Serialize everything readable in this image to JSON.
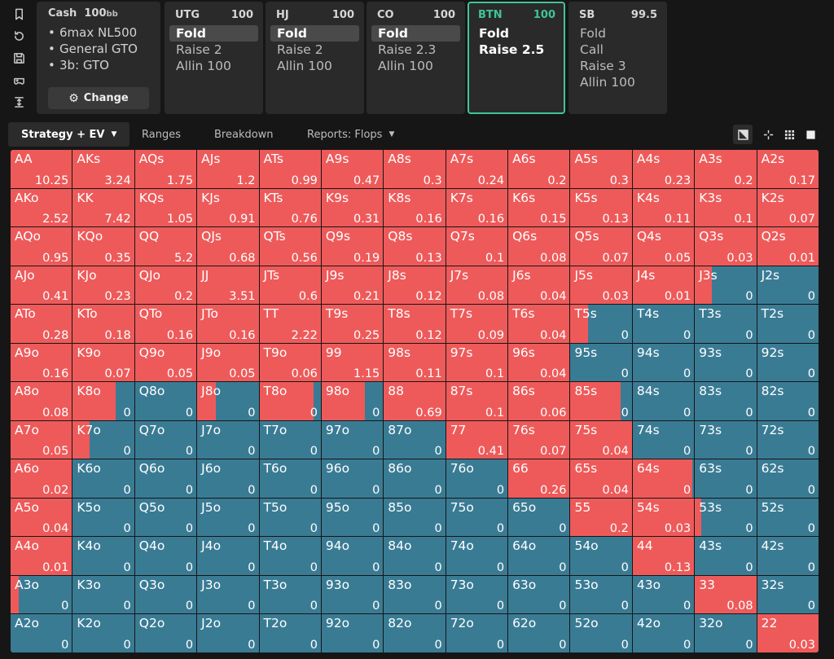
{
  "rail": {
    "icons": [
      "bookmark-icon",
      "refresh-icon",
      "save-icon",
      "gamepad-icon",
      "fit-height-icon"
    ]
  },
  "info": {
    "title": "Cash",
    "stack": "100",
    "stack_unit": "bb",
    "lines": [
      "6max NL500",
      "General GTO",
      "3b: GTO"
    ],
    "change_label": "Change"
  },
  "positions": [
    {
      "name": "UTG",
      "stack": "100",
      "actions": [
        {
          "label": "Fold",
          "selected": true
        },
        {
          "label": "Raise 2"
        },
        {
          "label": "Allin 100"
        }
      ]
    },
    {
      "name": "HJ",
      "stack": "100",
      "actions": [
        {
          "label": "Fold",
          "selected": true
        },
        {
          "label": "Raise 2"
        },
        {
          "label": "Allin 100"
        }
      ]
    },
    {
      "name": "CO",
      "stack": "100",
      "actions": [
        {
          "label": "Fold",
          "selected": true
        },
        {
          "label": "Raise 2.3"
        },
        {
          "label": "Allin 100"
        }
      ]
    },
    {
      "name": "BTN",
      "stack": "100",
      "active": true,
      "actions": [
        {
          "label": "Fold"
        },
        {
          "label": "Raise 2.5"
        }
      ]
    },
    {
      "name": "SB",
      "stack": "99.5",
      "actions": [
        {
          "label": "Fold"
        },
        {
          "label": "Call"
        },
        {
          "label": "Raise 3"
        },
        {
          "label": "Allin 100"
        }
      ]
    }
  ],
  "tabs": [
    {
      "label": "Strategy + EV",
      "active": true,
      "dropdown": true
    },
    {
      "label": "Ranges"
    },
    {
      "label": "Breakdown"
    },
    {
      "label": "Reports: Flops",
      "dropdown": true
    }
  ],
  "view_buttons": [
    "contrast-icon",
    "expand-icon",
    "grid-icon",
    "square-icon"
  ],
  "colors": {
    "raise": "#ee5a5a",
    "fold": "#3a7b94",
    "accent": "#3fc49a"
  },
  "grid": [
    [
      [
        "AA",
        "10.25",
        1
      ],
      [
        "AKs",
        "3.24",
        1
      ],
      [
        "AQs",
        "1.75",
        1
      ],
      [
        "AJs",
        "1.2",
        1
      ],
      [
        "ATs",
        "0.99",
        1
      ],
      [
        "A9s",
        "0.47",
        1
      ],
      [
        "A8s",
        "0.3",
        1
      ],
      [
        "A7s",
        "0.24",
        1
      ],
      [
        "A6s",
        "0.2",
        1
      ],
      [
        "A5s",
        "0.3",
        1
      ],
      [
        "A4s",
        "0.23",
        1
      ],
      [
        "A3s",
        "0.2",
        1
      ],
      [
        "A2s",
        "0.17",
        1
      ]
    ],
    [
      [
        "AKo",
        "2.52",
        1
      ],
      [
        "KK",
        "7.42",
        1
      ],
      [
        "KQs",
        "1.05",
        1
      ],
      [
        "KJs",
        "0.91",
        1
      ],
      [
        "KTs",
        "0.76",
        1
      ],
      [
        "K9s",
        "0.31",
        1
      ],
      [
        "K8s",
        "0.16",
        1
      ],
      [
        "K7s",
        "0.16",
        1
      ],
      [
        "K6s",
        "0.15",
        1
      ],
      [
        "K5s",
        "0.13",
        1
      ],
      [
        "K4s",
        "0.11",
        1
      ],
      [
        "K3s",
        "0.1",
        1
      ],
      [
        "K2s",
        "0.07",
        1
      ]
    ],
    [
      [
        "AQo",
        "0.95",
        1
      ],
      [
        "KQo",
        "0.35",
        1
      ],
      [
        "QQ",
        "5.2",
        1
      ],
      [
        "QJs",
        "0.68",
        1
      ],
      [
        "QTs",
        "0.56",
        1
      ],
      [
        "Q9s",
        "0.19",
        1
      ],
      [
        "Q8s",
        "0.13",
        1
      ],
      [
        "Q7s",
        "0.1",
        1
      ],
      [
        "Q6s",
        "0.08",
        1
      ],
      [
        "Q5s",
        "0.07",
        1
      ],
      [
        "Q4s",
        "0.05",
        1
      ],
      [
        "Q3s",
        "0.03",
        1
      ],
      [
        "Q2s",
        "0.01",
        1
      ]
    ],
    [
      [
        "AJo",
        "0.41",
        1
      ],
      [
        "KJo",
        "0.23",
        1
      ],
      [
        "QJo",
        "0.2",
        1
      ],
      [
        "JJ",
        "3.51",
        1
      ],
      [
        "JTs",
        "0.6",
        1
      ],
      [
        "J9s",
        "0.21",
        1
      ],
      [
        "J8s",
        "0.12",
        1
      ],
      [
        "J7s",
        "0.08",
        1
      ],
      [
        "J6s",
        "0.04",
        1
      ],
      [
        "J5s",
        "0.03",
        1
      ],
      [
        "J4s",
        "0.01",
        1
      ],
      [
        "J3s",
        "0",
        0.28
      ],
      [
        "J2s",
        "0",
        0
      ]
    ],
    [
      [
        "ATo",
        "0.28",
        1
      ],
      [
        "KTo",
        "0.18",
        1
      ],
      [
        "QTo",
        "0.16",
        1
      ],
      [
        "JTo",
        "0.16",
        1
      ],
      [
        "TT",
        "2.22",
        1
      ],
      [
        "T9s",
        "0.25",
        1
      ],
      [
        "T8s",
        "0.12",
        1
      ],
      [
        "T7s",
        "0.09",
        1
      ],
      [
        "T6s",
        "0.04",
        1
      ],
      [
        "T5s",
        "0",
        0.28
      ],
      [
        "T4s",
        "0",
        0
      ],
      [
        "T3s",
        "0",
        0
      ],
      [
        "T2s",
        "0",
        0
      ]
    ],
    [
      [
        "A9o",
        "0.16",
        1
      ],
      [
        "K9o",
        "0.07",
        1
      ],
      [
        "Q9o",
        "0.05",
        1
      ],
      [
        "J9o",
        "0.05",
        1
      ],
      [
        "T9o",
        "0.06",
        1
      ],
      [
        "99",
        "1.15",
        1
      ],
      [
        "98s",
        "0.11",
        1
      ],
      [
        "97s",
        "0.1",
        1
      ],
      [
        "96s",
        "0.04",
        1
      ],
      [
        "95s",
        "0",
        0
      ],
      [
        "94s",
        "0",
        0
      ],
      [
        "93s",
        "0",
        0
      ],
      [
        "92s",
        "0",
        0
      ]
    ],
    [
      [
        "A8o",
        "0.08",
        1
      ],
      [
        "K8o",
        "0",
        0.7
      ],
      [
        "Q8o",
        "0",
        0
      ],
      [
        "J8o",
        "0",
        0.3
      ],
      [
        "T8o",
        "0",
        0.88
      ],
      [
        "98o",
        "0",
        0.71
      ],
      [
        "88",
        "0.69",
        1
      ],
      [
        "87s",
        "0.1",
        1
      ],
      [
        "86s",
        "0.06",
        1
      ],
      [
        "85s",
        "0",
        0.82
      ],
      [
        "84s",
        "0",
        0
      ],
      [
        "83s",
        "0",
        0
      ],
      [
        "82s",
        "0",
        0
      ]
    ],
    [
      [
        "A7o",
        "0.05",
        1
      ],
      [
        "K7o",
        "0",
        0.28
      ],
      [
        "Q7o",
        "0",
        0
      ],
      [
        "J7o",
        "0",
        0
      ],
      [
        "T7o",
        "0",
        0
      ],
      [
        "97o",
        "0",
        0
      ],
      [
        "87o",
        "0",
        0
      ],
      [
        "77",
        "0.41",
        1
      ],
      [
        "76s",
        "0.07",
        1
      ],
      [
        "75s",
        "0.04",
        1
      ],
      [
        "74s",
        "0",
        0
      ],
      [
        "73s",
        "0",
        0
      ],
      [
        "72s",
        "0",
        0
      ]
    ],
    [
      [
        "A6o",
        "0.02",
        1
      ],
      [
        "K6o",
        "0",
        0
      ],
      [
        "Q6o",
        "0",
        0
      ],
      [
        "J6o",
        "0",
        0
      ],
      [
        "T6o",
        "0",
        0
      ],
      [
        "96o",
        "0",
        0
      ],
      [
        "86o",
        "0",
        0
      ],
      [
        "76o",
        "0",
        0
      ],
      [
        "66",
        "0.26",
        1
      ],
      [
        "65s",
        "0.04",
        1
      ],
      [
        "64s",
        "0",
        0.97
      ],
      [
        "63s",
        "0",
        0
      ],
      [
        "62s",
        "0",
        0
      ]
    ],
    [
      [
        "A5o",
        "0.04",
        1
      ],
      [
        "K5o",
        "0",
        0
      ],
      [
        "Q5o",
        "0",
        0
      ],
      [
        "J5o",
        "0",
        0
      ],
      [
        "T5o",
        "0",
        0
      ],
      [
        "95o",
        "0",
        0
      ],
      [
        "85o",
        "0",
        0
      ],
      [
        "75o",
        "0",
        0
      ],
      [
        "65o",
        "0",
        0
      ],
      [
        "55",
        "0.2",
        1
      ],
      [
        "54s",
        "0.03",
        1
      ],
      [
        "53s",
        "0",
        0.1
      ],
      [
        "52s",
        "0",
        0
      ]
    ],
    [
      [
        "A4o",
        "0.01",
        1
      ],
      [
        "K4o",
        "0",
        0
      ],
      [
        "Q4o",
        "0",
        0
      ],
      [
        "J4o",
        "0",
        0
      ],
      [
        "T4o",
        "0",
        0
      ],
      [
        "94o",
        "0",
        0
      ],
      [
        "84o",
        "0",
        0
      ],
      [
        "74o",
        "0",
        0
      ],
      [
        "64o",
        "0",
        0
      ],
      [
        "54o",
        "0",
        0
      ],
      [
        "44",
        "0.13",
        1
      ],
      [
        "43s",
        "0",
        0
      ],
      [
        "42s",
        "0",
        0
      ]
    ],
    [
      [
        "A3o",
        "0",
        0.13
      ],
      [
        "K3o",
        "0",
        0
      ],
      [
        "Q3o",
        "0",
        0
      ],
      [
        "J3o",
        "0",
        0
      ],
      [
        "T3o",
        "0",
        0
      ],
      [
        "93o",
        "0",
        0
      ],
      [
        "83o",
        "0",
        0
      ],
      [
        "73o",
        "0",
        0
      ],
      [
        "63o",
        "0",
        0
      ],
      [
        "53o",
        "0",
        0
      ],
      [
        "43o",
        "0",
        0
      ],
      [
        "33",
        "0.08",
        1
      ],
      [
        "32s",
        "0",
        0
      ]
    ],
    [
      [
        "A2o",
        "0",
        0
      ],
      [
        "K2o",
        "0",
        0
      ],
      [
        "Q2o",
        "0",
        0
      ],
      [
        "J2o",
        "0",
        0
      ],
      [
        "T2o",
        "0",
        0
      ],
      [
        "92o",
        "0",
        0
      ],
      [
        "82o",
        "0",
        0
      ],
      [
        "72o",
        "0",
        0
      ],
      [
        "62o",
        "0",
        0
      ],
      [
        "52o",
        "0",
        0
      ],
      [
        "42o",
        "0",
        0
      ],
      [
        "32o",
        "0",
        0
      ],
      [
        "22",
        "0.03",
        1
      ]
    ]
  ]
}
